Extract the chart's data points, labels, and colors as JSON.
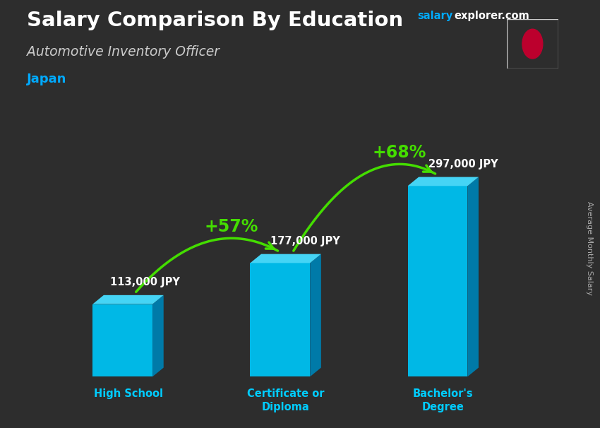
{
  "title": "Salary Comparison By Education",
  "subtitle": "Automotive Inventory Officer",
  "country": "Japan",
  "ylabel": "Average Monthly Salary",
  "categories": [
    "High School",
    "Certificate or\nDiploma",
    "Bachelor's\nDegree"
  ],
  "values": [
    113000,
    177000,
    297000
  ],
  "value_labels": [
    "113,000 JPY",
    "177,000 JPY",
    "297,000 JPY"
  ],
  "pct_labels": [
    "+57%",
    "+68%"
  ],
  "color_front": "#00b8e6",
  "color_top": "#45d4f5",
  "color_side": "#007aa8",
  "bg_color": "#2a2a2a",
  "title_color": "#ffffff",
  "subtitle_color": "#cccccc",
  "country_color": "#00aaff",
  "value_color": "#ffffff",
  "pct_color": "#aaff00",
  "arrow_color": "#44dd00",
  "brand_color_salary": "#00aaff",
  "brand_color_explorer": "#ffffff",
  "figsize": [
    8.5,
    6.06
  ],
  "dpi": 100,
  "ylim_max": 400000,
  "bar_width": 0.38
}
